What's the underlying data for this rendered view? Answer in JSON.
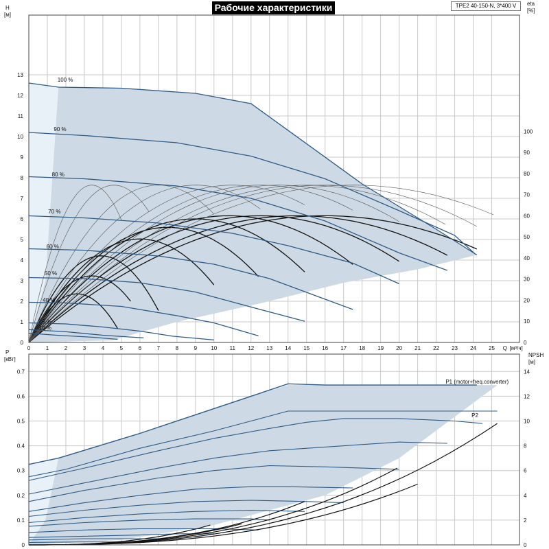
{
  "title": "Рабочие характеристики",
  "model": "TPE2 40-150-N, 3*400 V",
  "colors": {
    "area": "#cdd9e4",
    "area_light": "#e9f1f8",
    "curve": "#2e5a86",
    "black": "#111111",
    "eff": "#555555",
    "grid": "#c8c8c8"
  },
  "chart_data": [
    {
      "type": "line",
      "title": "Рабочие характеристики",
      "xlabel": "Q [м³/ч]",
      "x_ticks": [
        0,
        1,
        2,
        3,
        4,
        5,
        6,
        7,
        8,
        9,
        10,
        11,
        12,
        13,
        14,
        15,
        16,
        17,
        18,
        19,
        20,
        21,
        22,
        23,
        24,
        25
      ],
      "xlim": [
        0,
        26.5
      ],
      "ylabel": "H [м]",
      "ylim": [
        0,
        15.9
      ],
      "y_ticks": [
        0,
        1,
        2,
        3,
        4,
        5,
        6,
        7,
        8,
        9,
        10,
        11,
        12,
        13
      ],
      "y2label": "eta [%]",
      "y2lim": [
        0,
        155
      ],
      "y2_ticks": [
        0,
        10,
        20,
        30,
        40,
        50,
        60,
        70,
        80,
        90,
        100
      ],
      "speed_labels": [
        {
          "text": "100 %",
          "x": 1.4,
          "y": 12.6
        },
        {
          "text": "90 %",
          "x": 1.2,
          "y": 10.2
        },
        {
          "text": "80 %",
          "x": 1.1,
          "y": 8.0
        },
        {
          "text": "70 %",
          "x": 0.9,
          "y": 6.2
        },
        {
          "text": "60 %",
          "x": 0.8,
          "y": 4.5
        },
        {
          "text": "50 %",
          "x": 0.7,
          "y": 3.2
        },
        {
          "text": "40 %",
          "x": 0.6,
          "y": 1.9
        },
        {
          "text": "25 %",
          "x": 0.4,
          "y": 0.85
        },
        {
          "text": "10 %",
          "x": 0.4,
          "y": 0.55
        }
      ],
      "operating_envelope": [
        [
          0,
          12.6
        ],
        [
          1.6,
          12.4
        ],
        [
          5,
          12.35
        ],
        [
          9,
          12.1
        ],
        [
          11,
          11.8
        ],
        [
          12,
          11.6
        ],
        [
          18,
          7.7
        ],
        [
          22,
          5.5
        ],
        [
          24.2,
          4.25
        ],
        [
          21,
          3.55
        ],
        [
          17,
          2.9
        ],
        [
          12.5,
          1.9
        ],
        [
          8,
          1.0
        ],
        [
          4.5,
          0.1
        ],
        [
          0,
          0
        ]
      ],
      "series": [
        {
          "points": [
            [
              0,
              12.6
            ],
            [
              1.6,
              12.4
            ],
            [
              5,
              12.35
            ],
            [
              9,
              12.1
            ],
            [
              12,
              11.6
            ],
            [
              18,
              7.7
            ],
            [
              22,
              5.5
            ],
            [
              24.2,
              4.25
            ]
          ]
        },
        {
          "points": [
            [
              0,
              10.2
            ],
            [
              3,
              10.05
            ],
            [
              8,
              9.7
            ],
            [
              12,
              9.05
            ],
            [
              16,
              7.95
            ],
            [
              20,
              6.4
            ],
            [
              23,
              5.2
            ],
            [
              24.1,
              4.3
            ]
          ]
        },
        {
          "points": [
            [
              0,
              8.05
            ],
            [
              3,
              7.95
            ],
            [
              8,
              7.6
            ],
            [
              12,
              7.0
            ],
            [
              16,
              5.9
            ],
            [
              20,
              4.35
            ],
            [
              22.6,
              3.5
            ]
          ]
        },
        {
          "points": [
            [
              0,
              6.15
            ],
            [
              3,
              6.05
            ],
            [
              7,
              5.8
            ],
            [
              11,
              5.3
            ],
            [
              14,
              4.7
            ],
            [
              17.5,
              3.85
            ],
            [
              20,
              2.85
            ]
          ]
        },
        {
          "points": [
            [
              0,
              4.55
            ],
            [
              3,
              4.48
            ],
            [
              7,
              4.2
            ],
            [
              10,
              3.8
            ],
            [
              13,
              3.1
            ],
            [
              15.7,
              2.2
            ],
            [
              17.5,
              1.6
            ]
          ]
        },
        {
          "points": [
            [
              0,
              3.15
            ],
            [
              3,
              3.1
            ],
            [
              6,
              2.9
            ],
            [
              9,
              2.45
            ],
            [
              12.5,
              1.6
            ],
            [
              14.9,
              1.03
            ]
          ]
        },
        {
          "points": [
            [
              0,
              1.95
            ],
            [
              2,
              1.92
            ],
            [
              5,
              1.75
            ],
            [
              8,
              1.3
            ],
            [
              10,
              0.95
            ],
            [
              12.4,
              0.32
            ]
          ]
        },
        {
          "points": [
            [
              0,
              0.95
            ],
            [
              2,
              0.9
            ],
            [
              4,
              0.75
            ],
            [
              6,
              0.55
            ],
            [
              7.8,
              0.3
            ],
            [
              10,
              0.12
            ]
          ]
        },
        {
          "points": [
            [
              0,
              0.62
            ],
            [
              2,
              0.52
            ],
            [
              4,
              0.35
            ],
            [
              6.2,
              0.22
            ]
          ]
        },
        {
          "points": [
            [
              0,
              0.45
            ],
            [
              1.5,
              0.35
            ],
            [
              3.5,
              0.25
            ],
            [
              4.8,
              0.15
            ]
          ]
        }
      ],
      "efficiency_curves": [
        {
          "q_peak": 16.0,
          "eta_peak": 60.0,
          "x_end": 24.2
        },
        {
          "q_peak": 14.5,
          "eta_peak": 60.0,
          "x_end": 22.6
        },
        {
          "q_peak": 12.5,
          "eta_peak": 60.0,
          "x_end": 20.0
        },
        {
          "q_peak": 10.8,
          "eta_peak": 60.0,
          "x_end": 17.5
        },
        {
          "q_peak": 9.0,
          "eta_peak": 58.5,
          "x_end": 14.9
        },
        {
          "q_peak": 7.5,
          "eta_peak": 54.5,
          "x_end": 12.4
        },
        {
          "q_peak": 6.0,
          "eta_peak": 49.0,
          "x_end": 10.0
        },
        {
          "q_peak": 3.9,
          "eta_peak": 41.0,
          "x_end": 7.0
        },
        {
          "q_peak": 3.4,
          "eta_peak": 31.5,
          "x_end": 5.5
        },
        {
          "q_peak": 2.6,
          "eta_peak": 23.0,
          "x_end": 4.8
        }
      ],
      "system_curves": [
        {
          "q_peak": 3.4,
          "eta_peak": 74.5,
          "x_end": 5.0
        },
        {
          "q_peak": 4.6,
          "eta_peak": 74.5,
          "x_end": 6.5
        },
        {
          "q_peak": 7.0,
          "eta_peak": 74.5,
          "x_end": 10.0
        },
        {
          "q_peak": 9.0,
          "eta_peak": 74.5,
          "x_end": 12.5
        },
        {
          "q_peak": 11.0,
          "eta_peak": 74.5,
          "x_end": 14.9
        },
        {
          "q_peak": 12.5,
          "eta_peak": 74.5,
          "x_end": 17.5
        },
        {
          "q_peak": 13.5,
          "eta_peak": 74.5,
          "x_end": 20.0
        },
        {
          "q_peak": 15.0,
          "eta_peak": 74.5,
          "x_end": 22.5
        },
        {
          "q_peak": 16.0,
          "eta_peak": 74.5,
          "x_end": 24.2
        },
        {
          "q_peak": 17.5,
          "eta_peak": 74.5,
          "x_end": 25.1
        }
      ]
    },
    {
      "type": "line",
      "ylabel": "P [кВт]",
      "ylim": [
        0,
        0.77
      ],
      "y_ticks": [
        0,
        0.1,
        0.2,
        0.3,
        0.4,
        0.5,
        0.6,
        0.7
      ],
      "y2label": "NPSH [м]",
      "y2lim": [
        0,
        15.4
      ],
      "y2_ticks": [
        0,
        2,
        4,
        6,
        8,
        10,
        12,
        14
      ],
      "annotations": [
        {
          "text": "P1 (motor+freq.converter)",
          "x": 23.4,
          "y": 0.645
        },
        {
          "text": "P2",
          "x": 24.8,
          "y": 0.51
        }
      ],
      "envelope": [
        [
          0,
          0.325
        ],
        [
          1.6,
          0.35
        ],
        [
          6,
          0.45
        ],
        [
          10,
          0.55
        ],
        [
          12,
          0.6
        ],
        [
          14,
          0.645
        ],
        [
          20,
          0.645
        ],
        [
          24.2,
          0.645
        ],
        [
          25.3,
          0.645
        ],
        [
          20,
          0.35
        ],
        [
          16,
          0.2
        ],
        [
          10,
          0.08
        ],
        [
          5,
          0.02
        ],
        [
          0,
          0
        ]
      ],
      "series": [
        {
          "name": "P1",
          "points": [
            [
              0,
              0.325
            ],
            [
              1.6,
              0.35
            ],
            [
              6,
              0.45
            ],
            [
              10,
              0.55
            ],
            [
              12,
              0.6
            ],
            [
              14,
              0.65
            ],
            [
              16,
              0.645
            ],
            [
              20,
              0.645
            ],
            [
              24.2,
              0.645
            ]
          ]
        },
        {
          "points": [
            [
              0,
              0.275
            ],
            [
              2,
              0.305
            ],
            [
              6,
              0.39
            ],
            [
              10,
              0.46
            ],
            [
              12,
              0.5
            ],
            [
              14,
              0.54
            ],
            [
              20,
              0.54
            ],
            [
              25.3,
              0.54
            ]
          ]
        },
        {
          "points": [
            [
              0,
              0.26
            ],
            [
              3,
              0.31
            ],
            [
              7,
              0.38
            ],
            [
              10,
              0.43
            ],
            [
              13,
              0.47
            ],
            [
              15,
              0.495
            ],
            [
              17,
              0.51
            ],
            [
              20,
              0.51
            ],
            [
              23,
              0.5
            ],
            [
              24.5,
              0.49
            ]
          ]
        },
        {
          "points": [
            [
              0,
              0.205
            ],
            [
              3,
              0.25
            ],
            [
              7,
              0.31
            ],
            [
              10,
              0.35
            ],
            [
              13,
              0.38
            ],
            [
              16,
              0.395
            ],
            [
              20,
              0.415
            ],
            [
              22.6,
              0.41
            ]
          ]
        },
        {
          "points": [
            [
              0,
              0.175
            ],
            [
              3,
              0.22
            ],
            [
              7,
              0.27
            ],
            [
              10,
              0.3
            ],
            [
              13,
              0.32
            ],
            [
              16,
              0.315
            ],
            [
              18,
              0.31
            ],
            [
              20,
              0.305
            ]
          ]
        },
        {
          "points": [
            [
              0,
              0.135
            ],
            [
              3,
              0.17
            ],
            [
              6,
              0.2
            ],
            [
              9,
              0.225
            ],
            [
              12,
              0.235
            ],
            [
              14,
              0.235
            ],
            [
              17.5,
              0.23
            ]
          ]
        },
        {
          "points": [
            [
              0,
              0.115
            ],
            [
              3,
              0.14
            ],
            [
              6,
              0.16
            ],
            [
              9,
              0.175
            ],
            [
              12,
              0.18
            ],
            [
              15,
              0.175
            ],
            [
              17,
              0.17
            ]
          ]
        },
        {
          "points": [
            [
              0,
              0.09
            ],
            [
              3,
              0.11
            ],
            [
              6,
              0.125
            ],
            [
              9,
              0.135
            ],
            [
              12,
              0.14
            ],
            [
              14.9,
              0.135
            ]
          ]
        },
        {
          "points": [
            [
              0,
              0.075
            ],
            [
              3,
              0.09
            ],
            [
              6,
              0.1
            ],
            [
              9,
              0.105
            ],
            [
              12,
              0.105
            ],
            [
              13,
              0.1
            ]
          ]
        },
        {
          "points": [
            [
              0,
              0.05
            ],
            [
              3,
              0.06
            ],
            [
              6,
              0.065
            ],
            [
              10,
              0.065
            ],
            [
              12.4,
              0.06
            ]
          ]
        },
        {
          "points": [
            [
              0,
              0.03
            ],
            [
              3,
              0.035
            ],
            [
              6,
              0.04
            ],
            [
              8,
              0.045
            ],
            [
              10,
              0.045
            ]
          ]
        },
        {
          "points": [
            [
              0,
              0.02
            ],
            [
              3,
              0.025
            ],
            [
              6,
              0.025
            ],
            [
              7.5,
              0.025
            ]
          ]
        },
        {
          "points": [
            [
              0,
              0.01
            ],
            [
              3,
              0.012
            ],
            [
              5,
              0.012
            ]
          ]
        }
      ],
      "npsh_curves": [
        {
          "q_start": 0,
          "x_end": 9.8,
          "y_end": 1.6
        },
        {
          "q_start": 0,
          "x_end": 11.5,
          "y_end": 1.7
        },
        {
          "q_start": 0,
          "x_end": 14.9,
          "y_end": 3.5
        },
        {
          "q_start": 0,
          "x_end": 19.9,
          "y_end": 6.2
        },
        {
          "q_start": 0,
          "x_end": 21.0,
          "y_end": 4.9
        },
        {
          "q_start": 0,
          "x_end": 25.3,
          "y_end": 9.8
        }
      ]
    }
  ]
}
